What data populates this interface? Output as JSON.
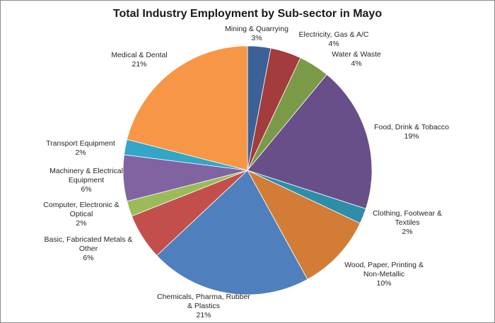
{
  "chart_data": {
    "type": "pie",
    "title": "Total Industry Employment by Sub-sector in Mayo",
    "slices": [
      {
        "name": "Mining & Quarrying",
        "label_lines": [
          "Mining & Quarrying"
        ],
        "percent_label": "3%",
        "value": 3,
        "color": "#3b6197"
      },
      {
        "name": "Electricity, Gas & A/C",
        "label_lines": [
          "Electricity, Gas & A/C"
        ],
        "percent_label": "4%",
        "value": 4,
        "color": "#a33c3c"
      },
      {
        "name": "Water & Waste",
        "label_lines": [
          "Water & Waste"
        ],
        "percent_label": "4%",
        "value": 4,
        "color": "#7a9a47"
      },
      {
        "name": "Food, Drink & Tobacco",
        "label_lines": [
          "Food, Drink & Tobacco"
        ],
        "percent_label": "19%",
        "value": 19,
        "color": "#684f89"
      },
      {
        "name": "Clothing, Footwear & Textiles",
        "label_lines": [
          "Clothing, Footwear &",
          "Textiles"
        ],
        "percent_label": "2%",
        "value": 2,
        "color": "#2e8ea8"
      },
      {
        "name": "Wood, Paper, Printing & Non-Metallic",
        "label_lines": [
          "Wood, Paper, Printing &",
          "Non-Metallic"
        ],
        "percent_label": "10%",
        "value": 10,
        "color": "#d27c36"
      },
      {
        "name": "Chemicals, Pharma, Rubber & Plastics",
        "label_lines": [
          "Chemicals, Pharma, Rubber",
          "& Plastics"
        ],
        "percent_label": "21%",
        "value": 21,
        "color": "#4f80bd"
      },
      {
        "name": "Basic, Fabricated Metals & Other",
        "label_lines": [
          "Basic, Fabricated Metals &",
          "Other"
        ],
        "percent_label": "6%",
        "value": 6,
        "color": "#c34f4c"
      },
      {
        "name": "Computer, Electronic & Optical",
        "label_lines": [
          "Computer, Electronic &",
          "Optical"
        ],
        "percent_label": "2%",
        "value": 2,
        "color": "#9bbb59"
      },
      {
        "name": "Machinery & Electrical Equipment",
        "label_lines": [
          "Machinery & Electrical",
          "Equipment"
        ],
        "percent_label": "6%",
        "value": 6,
        "color": "#8064a2"
      },
      {
        "name": "Transport Equipment",
        "label_lines": [
          "Transport Equipment"
        ],
        "percent_label": "2%",
        "value": 2,
        "color": "#33a6c8"
      },
      {
        "name": "Medical & Dental",
        "label_lines": [
          "Medical & Dental"
        ],
        "percent_label": "21%",
        "value": 21,
        "color": "#f79646"
      }
    ]
  }
}
